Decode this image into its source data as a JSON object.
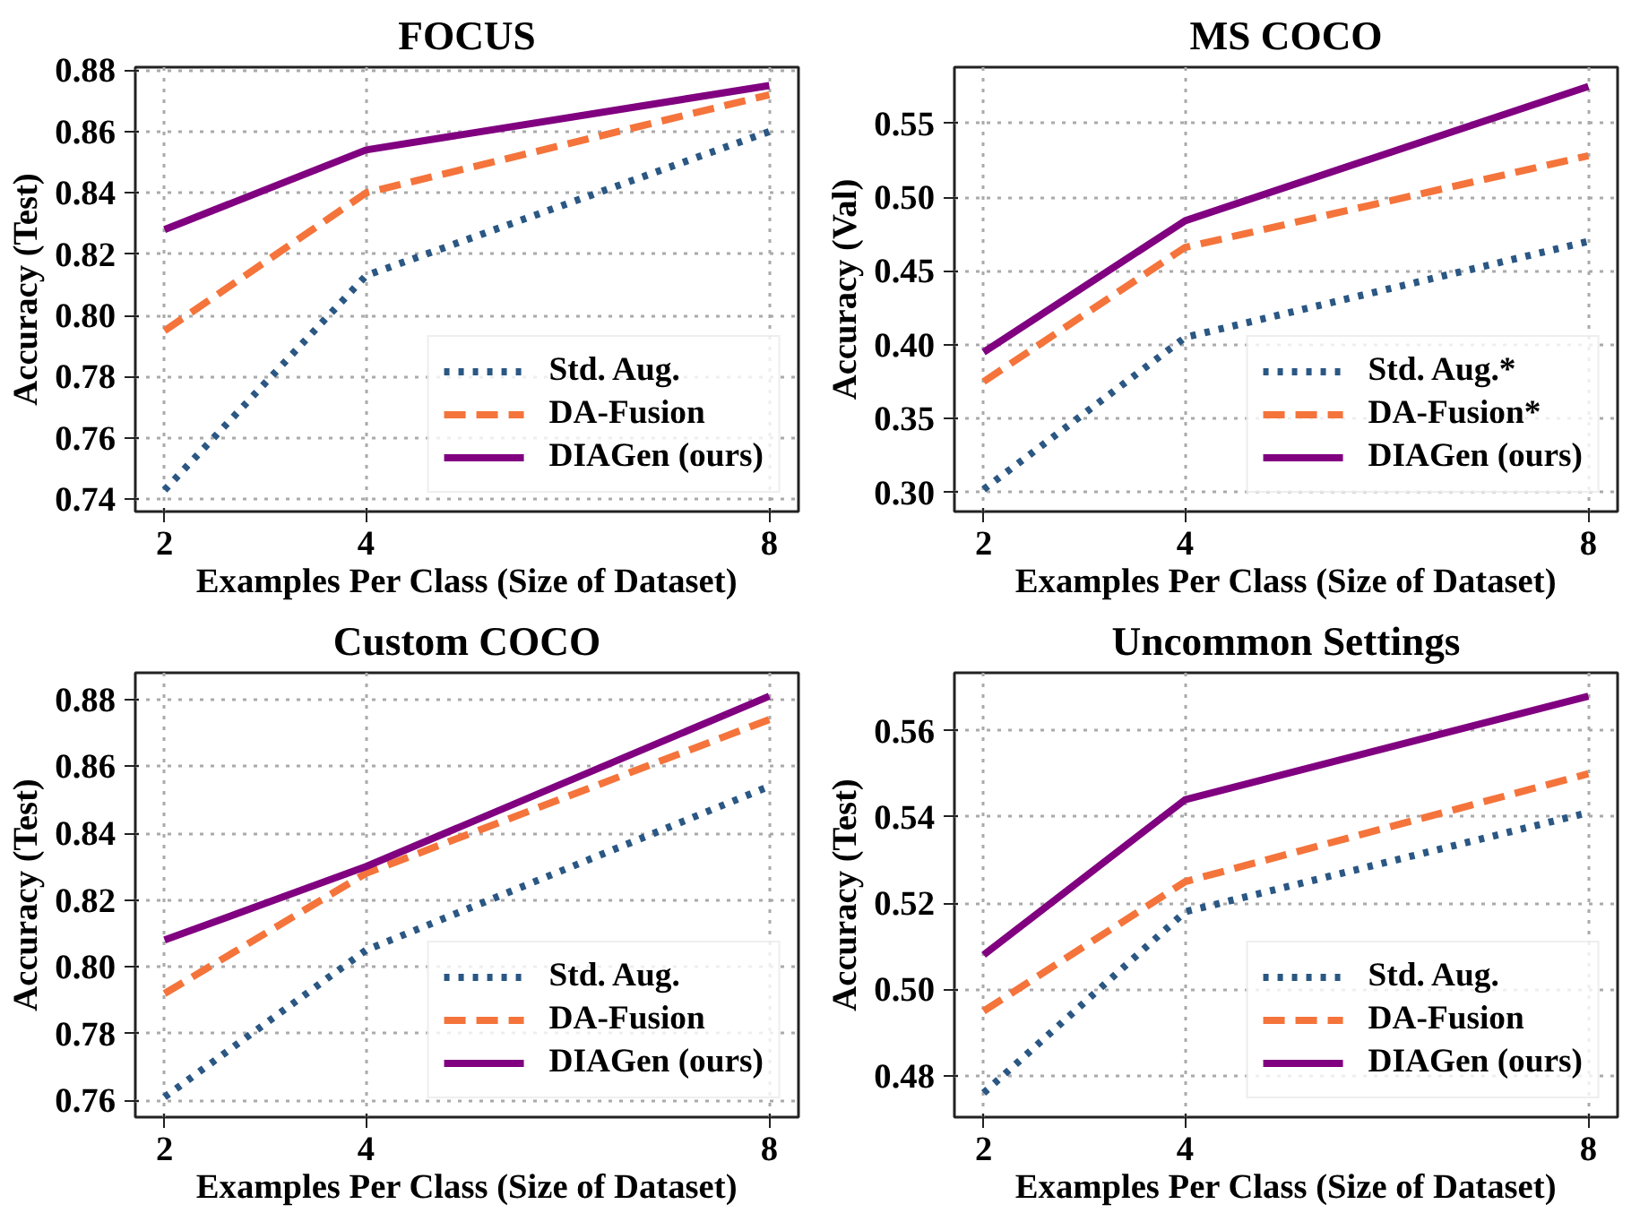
{
  "chart_data": [
    {
      "type": "line",
      "title": "FOCUS",
      "xlabel": "Examples Per Class (Size of Dataset)",
      "ylabel": "Accuracy (Test)",
      "x": [
        2,
        4,
        8
      ],
      "xlim": [
        1.71,
        8.29
      ],
      "xticks": [
        2,
        4,
        8
      ],
      "ylim": [
        0.736,
        0.881
      ],
      "yticks": [
        0.74,
        0.76,
        0.78,
        {
          "value": 0.8,
          "label": "0.80"
        },
        0.82,
        0.84,
        0.86,
        0.88
      ],
      "grid": true,
      "legend": "bottom right",
      "series": [
        {
          "name": "Std. Aug.",
          "color": "#2a5783",
          "line_style": "dotted",
          "values": [
            0.743,
            0.813,
            0.86
          ]
        },
        {
          "name": "DA-Fusion",
          "color": "#f4743b",
          "line_style": "dashed",
          "values": [
            0.795,
            0.84,
            0.872
          ]
        },
        {
          "name": "DIAGen (ours)",
          "color": "#800080",
          "line_style": "solid",
          "values": [
            0.828,
            0.854,
            0.875
          ]
        }
      ]
    },
    {
      "type": "line",
      "title": "MS COCO",
      "xlabel": "Examples Per Class (Size of Dataset)",
      "ylabel": "Accuracy (Val)",
      "x": [
        2,
        4,
        8
      ],
      "xlim": [
        1.71,
        8.29
      ],
      "xticks": [
        2,
        4,
        8
      ],
      "ylim": [
        0.287,
        0.588
      ],
      "yticks": [
        {
          "value": 0.3,
          "label": "0.30"
        },
        0.35,
        {
          "value": 0.4,
          "label": "0.40"
        },
        0.45,
        {
          "value": 0.5,
          "label": "0.50"
        },
        0.55
      ],
      "grid": true,
      "legend": "bottom right",
      "series": [
        {
          "name": "Std. Aug.*",
          "color": "#2a5783",
          "line_style": "dotted",
          "values": [
            0.302,
            0.405,
            0.47
          ]
        },
        {
          "name": "DA-Fusion*",
          "color": "#f4743b",
          "line_style": "dashed",
          "values": [
            0.375,
            0.466,
            0.528
          ]
        },
        {
          "name": "DIAGen (ours)",
          "color": "#800080",
          "line_style": "solid",
          "values": [
            0.395,
            0.484,
            0.575
          ]
        }
      ]
    },
    {
      "type": "line",
      "title": "Custom COCO",
      "xlabel": "Examples Per Class (Size of Dataset)",
      "ylabel": "Accuracy (Test)",
      "x": [
        2,
        4,
        8
      ],
      "xlim": [
        1.71,
        8.29
      ],
      "xticks": [
        2,
        4,
        8
      ],
      "ylim": [
        0.755,
        0.888
      ],
      "yticks": [
        0.76,
        0.78,
        {
          "value": 0.8,
          "label": "0.80"
        },
        0.82,
        0.84,
        0.86,
        0.88
      ],
      "grid": true,
      "legend": "bottom right",
      "series": [
        {
          "name": "Std. Aug.",
          "color": "#2a5783",
          "line_style": "dotted",
          "values": [
            0.761,
            0.805,
            0.854
          ]
        },
        {
          "name": "DA-Fusion",
          "color": "#f4743b",
          "line_style": "dashed",
          "values": [
            0.792,
            0.828,
            0.874
          ]
        },
        {
          "name": "DIAGen (ours)",
          "color": "#800080",
          "line_style": "solid",
          "values": [
            0.808,
            0.83,
            0.881
          ]
        }
      ]
    },
    {
      "type": "line",
      "title": "Uncommon Settings",
      "xlabel": "Examples Per Class (Size of Dataset)",
      "ylabel": "Accuracy (Test)",
      "x": [
        2,
        4,
        8
      ],
      "xlim": [
        1.71,
        8.29
      ],
      "xticks": [
        2,
        4,
        8
      ],
      "ylim": [
        0.4704,
        0.5734
      ],
      "yticks": [
        0.48,
        {
          "value": 0.5,
          "label": "0.50"
        },
        0.52,
        0.54,
        0.56
      ],
      "grid": true,
      "legend": "bottom right",
      "series": [
        {
          "name": "Std. Aug.",
          "color": "#2a5783",
          "line_style": "dotted",
          "values": [
            0.476,
            0.518,
            0.541
          ]
        },
        {
          "name": "DA-Fusion",
          "color": "#f4743b",
          "line_style": "dashed",
          "values": [
            0.495,
            0.525,
            0.55
          ]
        },
        {
          "name": "DIAGen (ours)",
          "color": "#800080",
          "line_style": "solid",
          "values": [
            0.508,
            0.544,
            0.568
          ]
        }
      ]
    }
  ]
}
